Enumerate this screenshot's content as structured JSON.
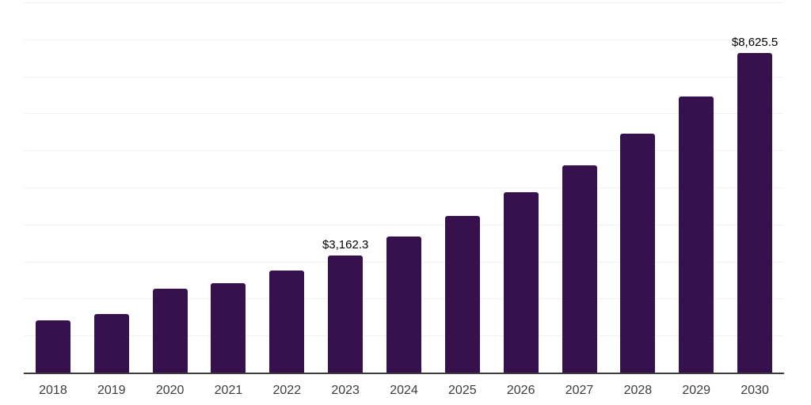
{
  "chart_data": {
    "type": "bar",
    "title": "",
    "xlabel": "",
    "ylabel": "",
    "categories": [
      "2018",
      "2019",
      "2020",
      "2021",
      "2022",
      "2023",
      "2024",
      "2025",
      "2026",
      "2027",
      "2028",
      "2029",
      "2030"
    ],
    "values": [
      1400,
      1590,
      2270,
      2410,
      2760,
      3162.3,
      3670,
      4240,
      4870,
      5590,
      6460,
      7450,
      8625.5
    ],
    "point_labels": [
      "",
      "",
      "",
      "",
      "",
      "$3,162.3",
      "",
      "",
      "",
      "",
      "",
      "",
      "$8,625.5"
    ],
    "ylim": [
      0,
      10000
    ],
    "grid": "horizontal",
    "gridline_step": 1000,
    "legend_position": "none",
    "colors": {
      "bar": "#36114E",
      "gridline": "#f1f1f1",
      "axis_line": "#3a3a3a",
      "tick_label": "#3c3c3c",
      "value_label": "#000000",
      "background": "#ffffff"
    }
  }
}
